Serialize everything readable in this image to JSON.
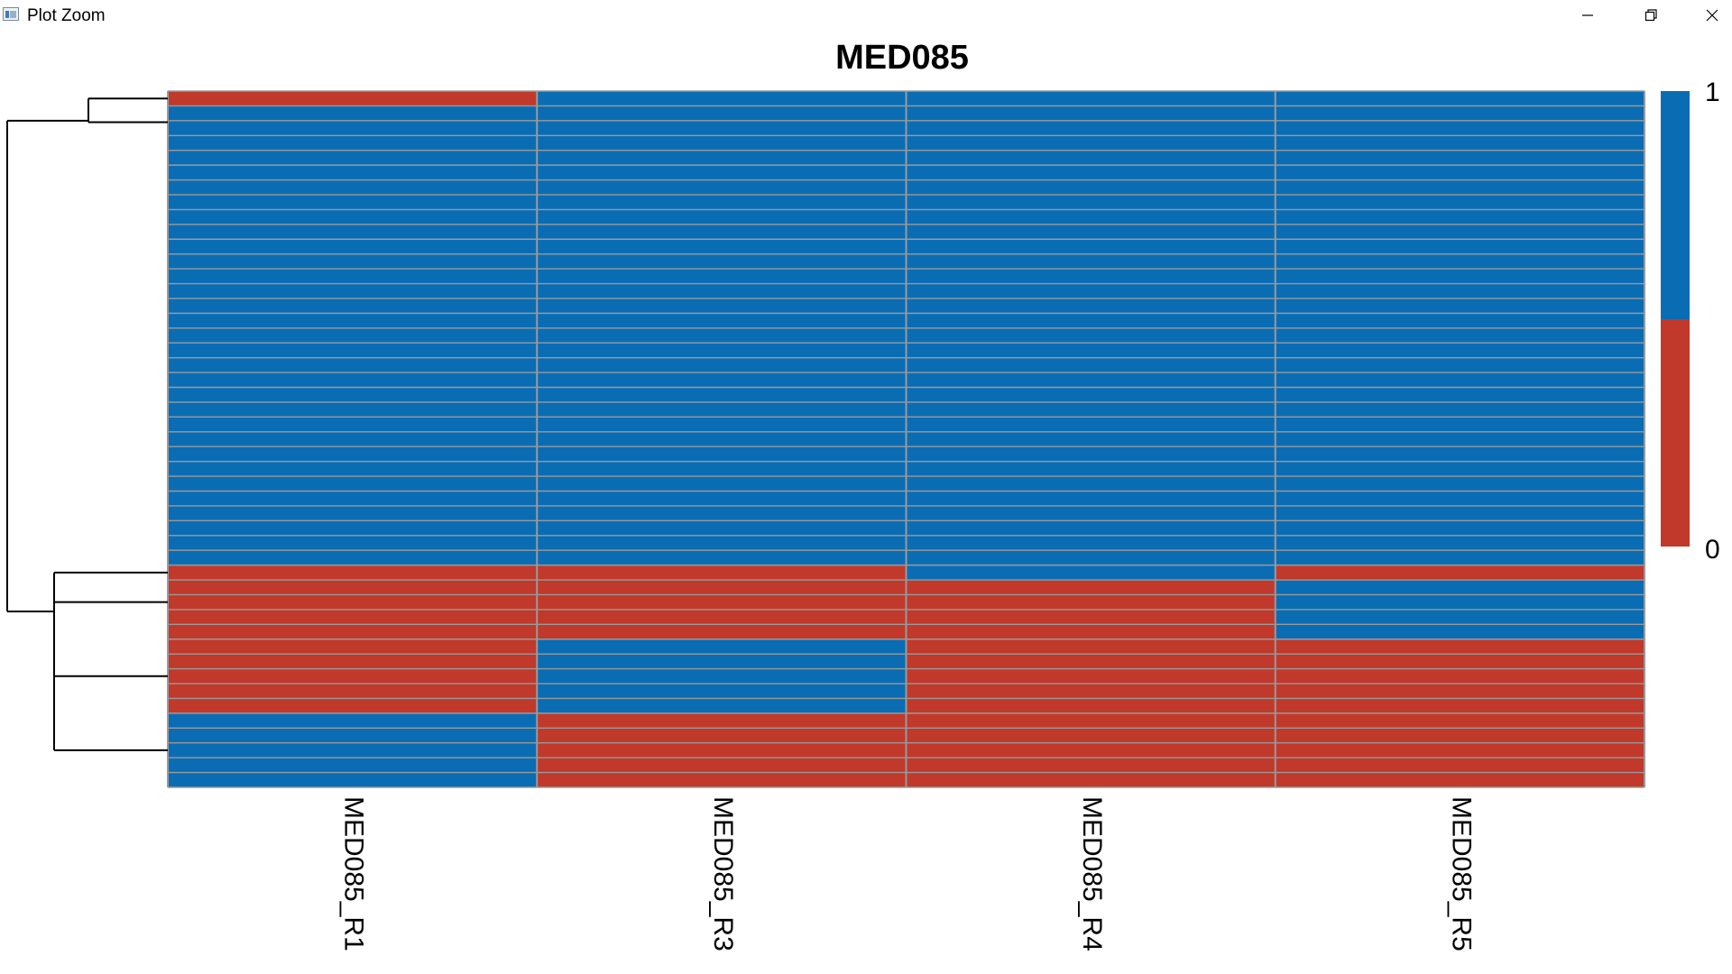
{
  "window": {
    "title": "Plot Zoom",
    "icons": [
      "app-icon",
      "minimize-icon",
      "restore-icon",
      "close-icon"
    ]
  },
  "chart_data": {
    "type": "heatmap",
    "title": "MED085",
    "columns": [
      "MED085_R1",
      "MED085_R3",
      "MED085_R4",
      "MED085_R5"
    ],
    "values": [
      [
        0,
        1,
        1,
        1
      ],
      [
        1,
        1,
        1,
        1
      ],
      [
        1,
        1,
        1,
        1
      ],
      [
        1,
        1,
        1,
        1
      ],
      [
        1,
        1,
        1,
        1
      ],
      [
        1,
        1,
        1,
        1
      ],
      [
        1,
        1,
        1,
        1
      ],
      [
        1,
        1,
        1,
        1
      ],
      [
        1,
        1,
        1,
        1
      ],
      [
        1,
        1,
        1,
        1
      ],
      [
        1,
        1,
        1,
        1
      ],
      [
        1,
        1,
        1,
        1
      ],
      [
        1,
        1,
        1,
        1
      ],
      [
        1,
        1,
        1,
        1
      ],
      [
        1,
        1,
        1,
        1
      ],
      [
        1,
        1,
        1,
        1
      ],
      [
        1,
        1,
        1,
        1
      ],
      [
        1,
        1,
        1,
        1
      ],
      [
        1,
        1,
        1,
        1
      ],
      [
        1,
        1,
        1,
        1
      ],
      [
        1,
        1,
        1,
        1
      ],
      [
        1,
        1,
        1,
        1
      ],
      [
        1,
        1,
        1,
        1
      ],
      [
        1,
        1,
        1,
        1
      ],
      [
        1,
        1,
        1,
        1
      ],
      [
        1,
        1,
        1,
        1
      ],
      [
        1,
        1,
        1,
        1
      ],
      [
        1,
        1,
        1,
        1
      ],
      [
        1,
        1,
        1,
        1
      ],
      [
        1,
        1,
        1,
        1
      ],
      [
        1,
        1,
        1,
        1
      ],
      [
        1,
        1,
        1,
        1
      ],
      [
        0,
        0,
        1,
        0
      ],
      [
        0,
        0,
        0,
        1
      ],
      [
        0,
        0,
        0,
        1
      ],
      [
        0,
        0,
        0,
        1
      ],
      [
        0,
        0,
        0,
        1
      ],
      [
        0,
        1,
        0,
        0
      ],
      [
        0,
        1,
        0,
        0
      ],
      [
        0,
        1,
        0,
        0
      ],
      [
        0,
        1,
        0,
        0
      ],
      [
        0,
        1,
        0,
        0
      ],
      [
        1,
        0,
        0,
        0
      ],
      [
        1,
        0,
        0,
        0
      ],
      [
        1,
        0,
        0,
        0
      ],
      [
        1,
        0,
        0,
        0
      ],
      [
        1,
        0,
        0,
        0
      ]
    ],
    "row_dendrogram": "present (left side)",
    "legend": {
      "type": "color-bar",
      "ticks": [
        1,
        0
      ],
      "placement": "right"
    },
    "colors": {
      "1": "#0a6db4",
      "0": "#c0392b",
      "grid": "#9a9a9a"
    }
  }
}
